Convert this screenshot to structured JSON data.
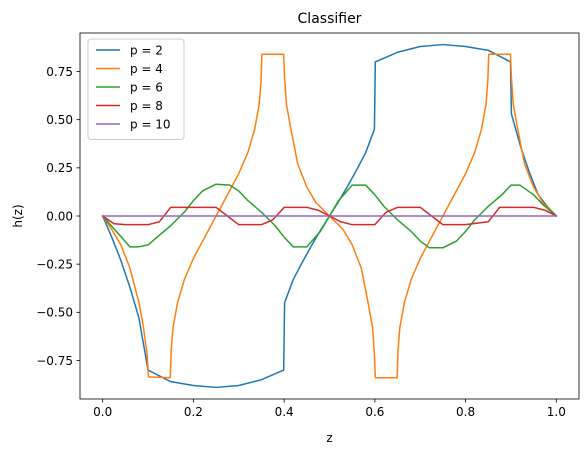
{
  "chart_data": {
    "type": "line",
    "title": "Classifier",
    "xlabel": "z",
    "ylabel": "h(z)",
    "xlim": [
      -0.05,
      1.05
    ],
    "ylim": [
      -0.95,
      0.95
    ],
    "xticks": [
      0.0,
      0.2,
      0.4,
      0.6,
      0.8,
      1.0
    ],
    "xtick_labels": [
      "0.0",
      "0.2",
      "0.4",
      "0.6",
      "0.8",
      "1.0"
    ],
    "yticks": [
      -0.75,
      -0.5,
      -0.25,
      0.0,
      0.25,
      0.5,
      0.75
    ],
    "ytick_labels": [
      "−0.75",
      "−0.50",
      "−0.25",
      "0.00",
      "0.25",
      "0.50",
      "0.75"
    ],
    "grid": false,
    "legend_position": "top-left",
    "series": [
      {
        "name": "p = 2",
        "color": "#1f77b4",
        "x": [
          0,
          0.02,
          0.04,
          0.06,
          0.08,
          0.1,
          0.15,
          0.2,
          0.25,
          0.3,
          0.35,
          0.399,
          0.401,
          0.42,
          0.44,
          0.46,
          0.48,
          0.5,
          0.52,
          0.54,
          0.56,
          0.58,
          0.599,
          0.601,
          0.65,
          0.7,
          0.75,
          0.8,
          0.85,
          0.899,
          0.901,
          0.92,
          0.94,
          0.96,
          0.98,
          1.0
        ],
        "y": [
          0,
          -0.11,
          -0.23,
          -0.37,
          -0.53,
          -0.8,
          -0.86,
          -0.88,
          -0.89,
          -0.88,
          -0.85,
          -0.8,
          -0.45,
          -0.33,
          -0.24,
          -0.155,
          -0.075,
          0,
          0.075,
          0.155,
          0.24,
          0.33,
          0.45,
          0.8,
          0.85,
          0.88,
          0.89,
          0.88,
          0.86,
          0.8,
          0.53,
          0.37,
          0.23,
          0.11,
          0.05,
          0
        ]
      },
      {
        "name": "p = 4",
        "color": "#ff7f0e",
        "x": [
          0,
          0.02,
          0.04,
          0.06,
          0.08,
          0.09,
          0.098,
          0.101,
          0.149,
          0.151,
          0.155,
          0.165,
          0.18,
          0.2,
          0.25,
          0.3,
          0.32,
          0.335,
          0.345,
          0.349,
          0.351,
          0.399,
          0.401,
          0.405,
          0.415,
          0.43,
          0.45,
          0.47,
          0.5,
          0.53,
          0.55,
          0.57,
          0.585,
          0.595,
          0.599,
          0.601,
          0.649,
          0.651,
          0.655,
          0.665,
          0.68,
          0.7,
          0.75,
          0.8,
          0.82,
          0.835,
          0.845,
          0.849,
          0.851,
          0.899,
          0.901,
          0.905,
          0.915,
          0.93,
          0.95,
          0.97,
          1.0
        ],
        "y": [
          0,
          -0.07,
          -0.15,
          -0.27,
          -0.45,
          -0.58,
          -0.72,
          -0.835,
          -0.84,
          -0.7,
          -0.58,
          -0.45,
          -0.33,
          -0.22,
          0,
          0.22,
          0.33,
          0.45,
          0.58,
          0.7,
          0.84,
          0.84,
          0.72,
          0.58,
          0.45,
          0.27,
          0.15,
          0.07,
          0,
          -0.07,
          -0.15,
          -0.27,
          -0.45,
          -0.58,
          -0.72,
          -0.84,
          -0.84,
          -0.7,
          -0.58,
          -0.45,
          -0.33,
          -0.22,
          0,
          0.22,
          0.33,
          0.45,
          0.58,
          0.7,
          0.84,
          0.84,
          0.72,
          0.58,
          0.45,
          0.27,
          0.15,
          0.07,
          0
        ]
      },
      {
        "name": "p = 6",
        "color": "#2ca02c",
        "x": [
          0,
          0.03,
          0.06,
          0.08,
          0.1,
          0.12,
          0.15,
          0.18,
          0.2,
          0.22,
          0.25,
          0.28,
          0.3,
          0.32,
          0.35,
          0.38,
          0.4,
          0.42,
          0.45,
          0.48,
          0.5,
          0.52,
          0.55,
          0.58,
          0.6,
          0.62,
          0.65,
          0.68,
          0.7,
          0.72,
          0.75,
          0.78,
          0.8,
          0.82,
          0.85,
          0.88,
          0.9,
          0.92,
          0.95,
          0.97,
          1.0
        ],
        "y": [
          0,
          -0.08,
          -0.16,
          -0.16,
          -0.15,
          -0.11,
          -0.05,
          0.02,
          0.08,
          0.13,
          0.165,
          0.16,
          0.13,
          0.08,
          0.02,
          -0.05,
          -0.11,
          -0.16,
          -0.16,
          -0.08,
          0,
          0.08,
          0.16,
          0.16,
          0.11,
          0.05,
          -0.02,
          -0.08,
          -0.13,
          -0.165,
          -0.165,
          -0.13,
          -0.08,
          -0.02,
          0.05,
          0.11,
          0.16,
          0.16,
          0.11,
          0.06,
          0
        ]
      },
      {
        "name": "p = 8",
        "color": "#d62728",
        "x": [
          0,
          0.025,
          0.05,
          0.1,
          0.125,
          0.15,
          0.2,
          0.225,
          0.25,
          0.275,
          0.3,
          0.35,
          0.375,
          0.4,
          0.45,
          0.475,
          0.5,
          0.525,
          0.55,
          0.6,
          0.625,
          0.65,
          0.7,
          0.725,
          0.75,
          0.775,
          0.8,
          0.85,
          0.875,
          0.9,
          0.95,
          0.975,
          1.0
        ],
        "y": [
          0,
          -0.04,
          -0.045,
          -0.045,
          -0.03,
          0.045,
          0.045,
          0.045,
          0.045,
          0.0,
          -0.045,
          -0.045,
          -0.02,
          0.045,
          0.045,
          0.03,
          0,
          -0.03,
          -0.045,
          -0.045,
          0.02,
          0.045,
          0.045,
          0.0,
          -0.045,
          -0.045,
          -0.045,
          -0.03,
          0.045,
          0.045,
          0.045,
          0.03,
          0
        ]
      },
      {
        "name": "p = 10",
        "color": "#9467bd",
        "x": [
          0,
          1.0
        ],
        "y": [
          0,
          0
        ]
      }
    ]
  }
}
